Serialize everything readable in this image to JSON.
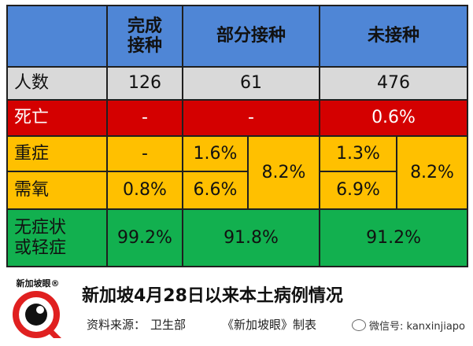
{
  "header": {
    "col1": [
      "完成",
      "接种"
    ],
    "col2": "部分接种",
    "col3": "未接种"
  },
  "rows": {
    "count": {
      "label": "人数",
      "full": "126",
      "partial": "61",
      "none": "476"
    },
    "death": {
      "label": "死亡",
      "full": "-",
      "partial": "-",
      "none": "0.6%"
    },
    "severe": {
      "label": "重症",
      "full": "-",
      "partial": "1.6%",
      "partial_total": "8.2%",
      "none": "1.3%",
      "none_total": "8.2%"
    },
    "oxygen": {
      "label": "需氧",
      "full": "0.8%",
      "partial": "6.6%",
      "none": "6.9%"
    },
    "asymptomatic": {
      "label": [
        "无症状",
        "或轻症"
      ],
      "full": "99.2%",
      "partial": "91.8%",
      "none": "91.2%"
    }
  },
  "footer": {
    "logo_text": "新加坡眼®",
    "title": "新加坡4月28日以来本土病例情况",
    "source_label": "资料来源：",
    "source_value": "卫生部",
    "publication": "《新加坡眼》制表",
    "wechat": "微信号: kanxinjiapo"
  },
  "colors": {
    "header": "#4f86d6",
    "count_row": "#d9d9d9",
    "death_row": "#d40000",
    "severe_row": "#ffc000",
    "asym_row": "#12b04f"
  }
}
